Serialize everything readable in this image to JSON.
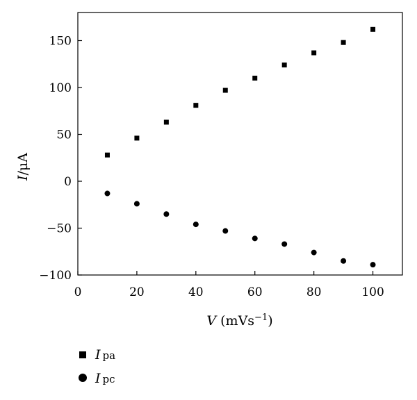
{
  "chart_data": {
    "type": "scatter",
    "xlabel": {
      "var": "V",
      "unit": "(mVs",
      "exp": "−1",
      "close": ")"
    },
    "ylabel": {
      "var": "I",
      "unit": "/μA"
    },
    "xlim": [
      0,
      110
    ],
    "ylim": [
      -100,
      180
    ],
    "xticks": [
      0,
      20,
      40,
      60,
      80,
      100
    ],
    "yticks": [
      -100,
      -50,
      0,
      50,
      100,
      150
    ],
    "xtick_labels": [
      "0",
      "20",
      "40",
      "60",
      "80",
      "100"
    ],
    "ytick_labels": [
      "−100",
      "−50",
      "0",
      "50",
      "100",
      "150"
    ],
    "grid": false,
    "legend_position": "below",
    "series": [
      {
        "name": "Ipa",
        "label_var": "I",
        "label_sub": "pa",
        "marker": "square",
        "color": "#000000",
        "x": [
          10,
          20,
          30,
          40,
          50,
          60,
          70,
          80,
          90,
          100
        ],
        "y": [
          28,
          46,
          63,
          81,
          97,
          110,
          124,
          137,
          148,
          162
        ]
      },
      {
        "name": "Ipc",
        "label_var": "I",
        "label_sub": "pc",
        "marker": "circle",
        "color": "#000000",
        "x": [
          10,
          20,
          30,
          40,
          50,
          60,
          70,
          80,
          90,
          100
        ],
        "y": [
          -13,
          -24,
          -35,
          -46,
          -53,
          -61,
          -67,
          -76,
          -85,
          -89
        ]
      }
    ]
  }
}
